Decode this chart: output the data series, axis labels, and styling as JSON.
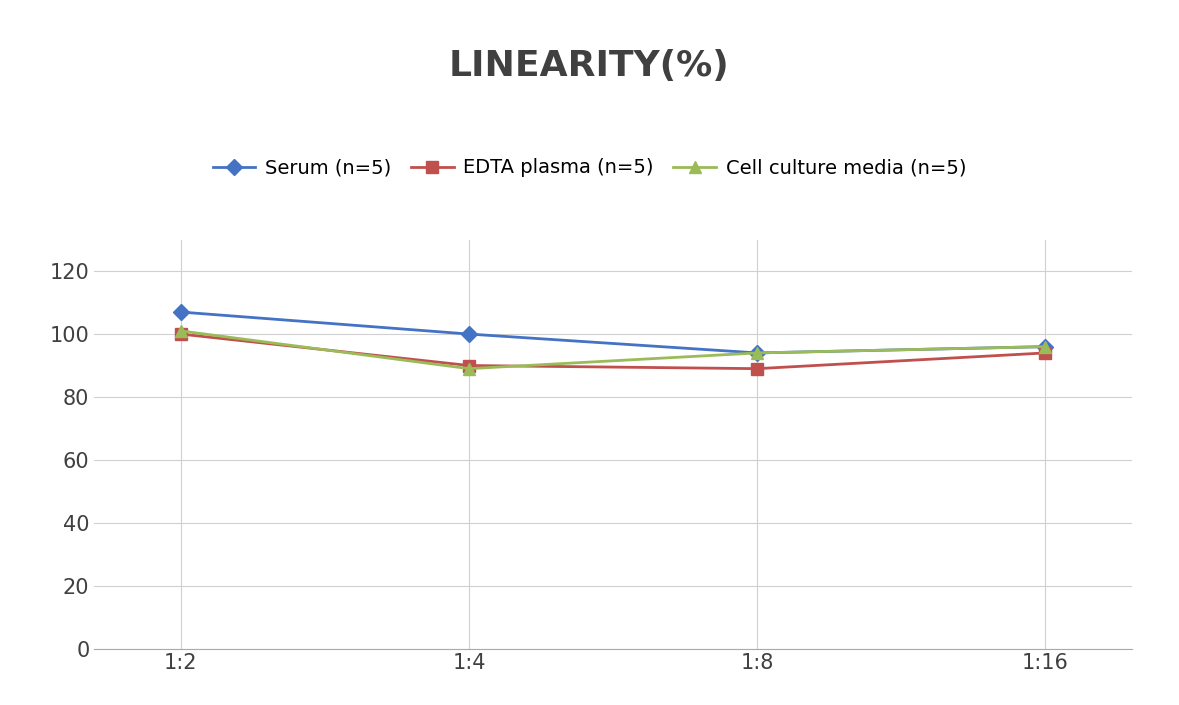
{
  "title": "LINEARITY(%)",
  "x_labels": [
    "1:2",
    "1:4",
    "1:8",
    "1:16"
  ],
  "x_positions": [
    0,
    1,
    2,
    3
  ],
  "series": [
    {
      "name": "Serum (n=5)",
      "values": [
        107,
        100,
        94,
        96
      ],
      "color": "#4472C4",
      "marker": "D",
      "linewidth": 2,
      "markersize": 8
    },
    {
      "name": "EDTA plasma (n=5)",
      "values": [
        100,
        90,
        89,
        94
      ],
      "color": "#C0504D",
      "marker": "s",
      "linewidth": 2,
      "markersize": 8
    },
    {
      "name": "Cell culture media (n=5)",
      "values": [
        101,
        89,
        94,
        96
      ],
      "color": "#9BBB59",
      "marker": "^",
      "linewidth": 2,
      "markersize": 8
    }
  ],
  "ylim": [
    0,
    130
  ],
  "yticks": [
    0,
    20,
    40,
    60,
    80,
    100,
    120
  ],
  "title_fontsize": 26,
  "tick_fontsize": 15,
  "legend_fontsize": 14,
  "background_color": "#ffffff",
  "grid_color": "#d0d0d0",
  "title_color": "#404040",
  "tick_color": "#404040"
}
